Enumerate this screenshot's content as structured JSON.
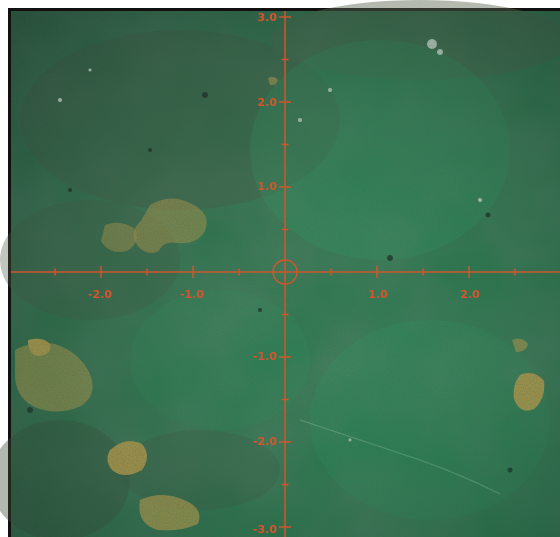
{
  "image": {
    "subject": "green-mineral-surface-with-reticle",
    "colors": {
      "surface_dark": "#1f5a3c",
      "surface_mid": "#2f7a52",
      "surface_light": "#3aa06a",
      "mineral_gold": "#c9a24a",
      "reticle": "#d9542c",
      "frame": "#111111"
    }
  },
  "reticle": {
    "x_labels": [
      "-2.0",
      "-1.0",
      "1.0",
      "2.0"
    ],
    "y_labels": [
      "3.0",
      "2.0",
      "1.0",
      "-1.0",
      "-2.0",
      "-3.0"
    ]
  }
}
